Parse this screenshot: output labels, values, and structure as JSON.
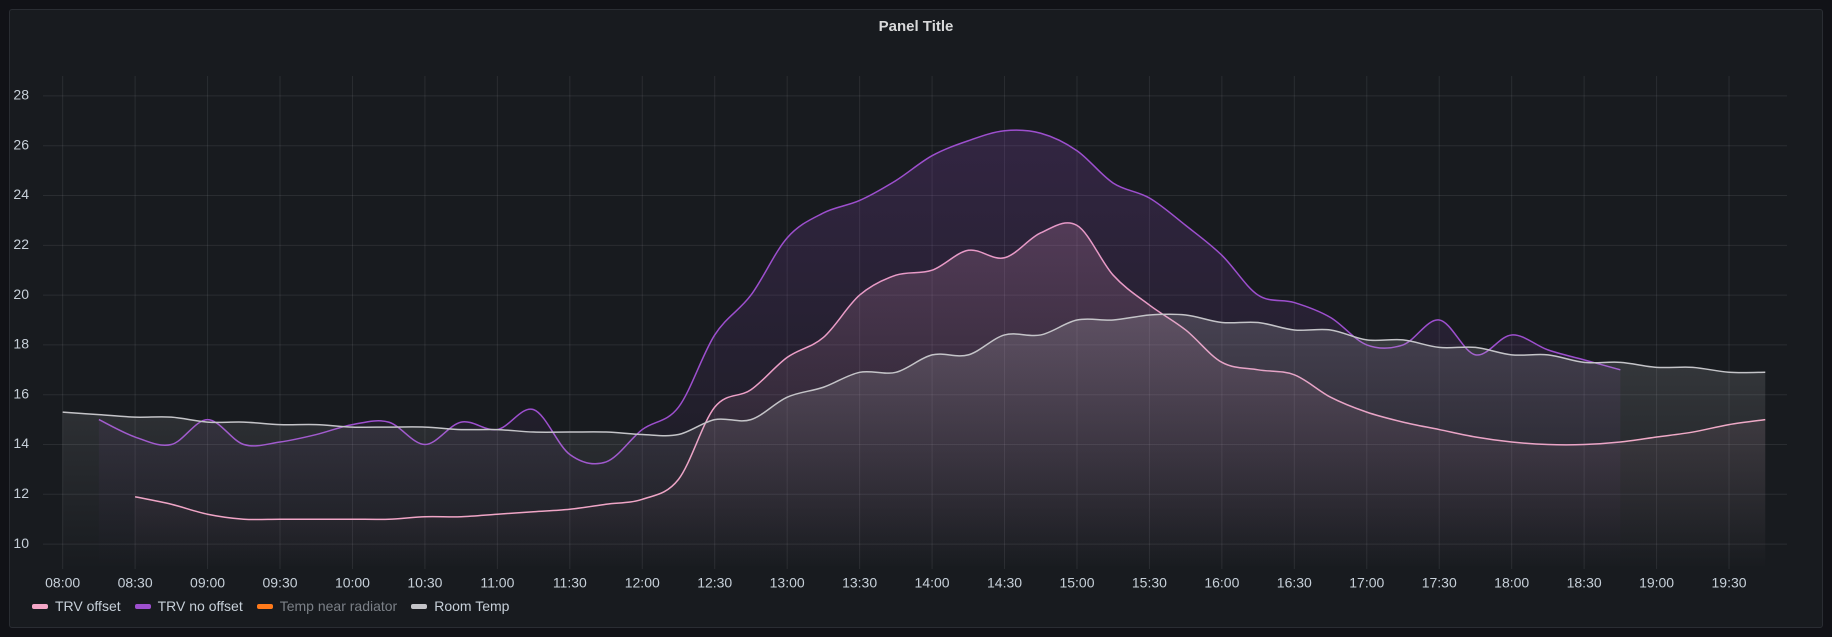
{
  "chart_data": {
    "type": "line",
    "title": "Panel Title",
    "x": [
      "08:00",
      "08:15",
      "08:30",
      "08:45",
      "09:00",
      "09:15",
      "09:30",
      "09:45",
      "10:00",
      "10:15",
      "10:30",
      "10:45",
      "11:00",
      "11:15",
      "11:30",
      "11:45",
      "12:00",
      "12:15",
      "12:30",
      "12:45",
      "13:00",
      "13:15",
      "13:30",
      "13:45",
      "14:00",
      "14:15",
      "14:30",
      "14:45",
      "15:00",
      "15:15",
      "15:30",
      "15:45",
      "16:00",
      "16:15",
      "16:30",
      "16:45",
      "17:00",
      "17:15",
      "17:30",
      "17:45",
      "18:00",
      "18:15",
      "18:30",
      "18:45",
      "19:00",
      "19:15",
      "19:30",
      "19:45"
    ],
    "xlim": [
      "07:56",
      "19:54"
    ],
    "xticks": [
      "08:00",
      "08:30",
      "09:00",
      "09:30",
      "10:00",
      "10:30",
      "11:00",
      "11:30",
      "12:00",
      "12:30",
      "13:00",
      "13:30",
      "14:00",
      "14:30",
      "15:00",
      "15:30",
      "16:00",
      "16:30",
      "17:00",
      "17:30",
      "18:00",
      "18:30",
      "19:00",
      "19:30"
    ],
    "ylim": [
      9,
      28.8
    ],
    "yticks": [
      10,
      12,
      14,
      16,
      18,
      20,
      22,
      24,
      26,
      28
    ],
    "grid": true,
    "legend": "bottom-left",
    "series": [
      {
        "name": "TRV offset",
        "color": "#f4a6c6",
        "values": [
          null,
          null,
          11.9,
          11.6,
          11.2,
          11.0,
          11.0,
          11.0,
          11.0,
          11.0,
          11.1,
          11.1,
          11.2,
          11.3,
          11.4,
          11.6,
          11.8,
          12.6,
          15.5,
          16.2,
          17.5,
          18.3,
          20.0,
          20.8,
          21.0,
          21.8,
          21.5,
          22.5,
          22.8,
          20.8,
          19.6,
          18.6,
          17.3,
          17.0,
          16.8,
          15.9,
          15.3,
          14.9,
          14.6,
          14.3,
          14.1,
          14.0,
          14.0,
          14.1,
          14.3,
          14.5,
          14.8,
          15.0
        ]
      },
      {
        "name": "TRV no offset",
        "color": "#9d4fce",
        "values": [
          null,
          15.0,
          14.3,
          14.0,
          15.0,
          14.0,
          14.1,
          14.4,
          14.8,
          14.9,
          14.0,
          14.9,
          14.6,
          15.4,
          13.6,
          13.3,
          14.6,
          15.5,
          18.4,
          20.0,
          22.3,
          23.3,
          23.8,
          24.6,
          25.6,
          26.2,
          26.6,
          26.5,
          25.8,
          24.5,
          23.9,
          22.8,
          21.6,
          20.0,
          19.7,
          19.1,
          18.0,
          18.0,
          19.0,
          17.6,
          18.4,
          17.8,
          17.4,
          17.0,
          null,
          null,
          null,
          null
        ]
      },
      {
        "name": "Temp near radiator",
        "color": "#ff7a1a",
        "values": [
          null,
          null,
          null,
          null,
          null,
          null,
          null,
          null,
          null,
          null,
          null,
          null,
          null,
          null,
          null,
          null,
          null,
          null,
          null,
          null,
          null,
          null,
          null,
          null,
          null,
          null,
          null,
          null,
          null,
          null,
          null,
          null,
          null,
          null,
          null,
          null,
          null,
          null,
          null,
          null,
          null,
          null,
          null,
          null,
          null,
          null,
          null,
          null
        ]
      },
      {
        "name": "Room Temp",
        "color": "#c4c4c8",
        "values": [
          15.3,
          15.2,
          15.1,
          15.1,
          14.9,
          14.9,
          14.8,
          14.8,
          14.7,
          14.7,
          14.7,
          14.6,
          14.6,
          14.5,
          14.5,
          14.5,
          14.4,
          14.4,
          15.0,
          15.0,
          15.9,
          16.3,
          16.9,
          16.9,
          17.6,
          17.6,
          18.4,
          18.4,
          19.0,
          19.0,
          19.2,
          19.2,
          18.9,
          18.9,
          18.6,
          18.6,
          18.2,
          18.2,
          17.9,
          17.9,
          17.6,
          17.6,
          17.3,
          17.3,
          17.1,
          17.1,
          16.9,
          16.9
        ]
      }
    ]
  }
}
